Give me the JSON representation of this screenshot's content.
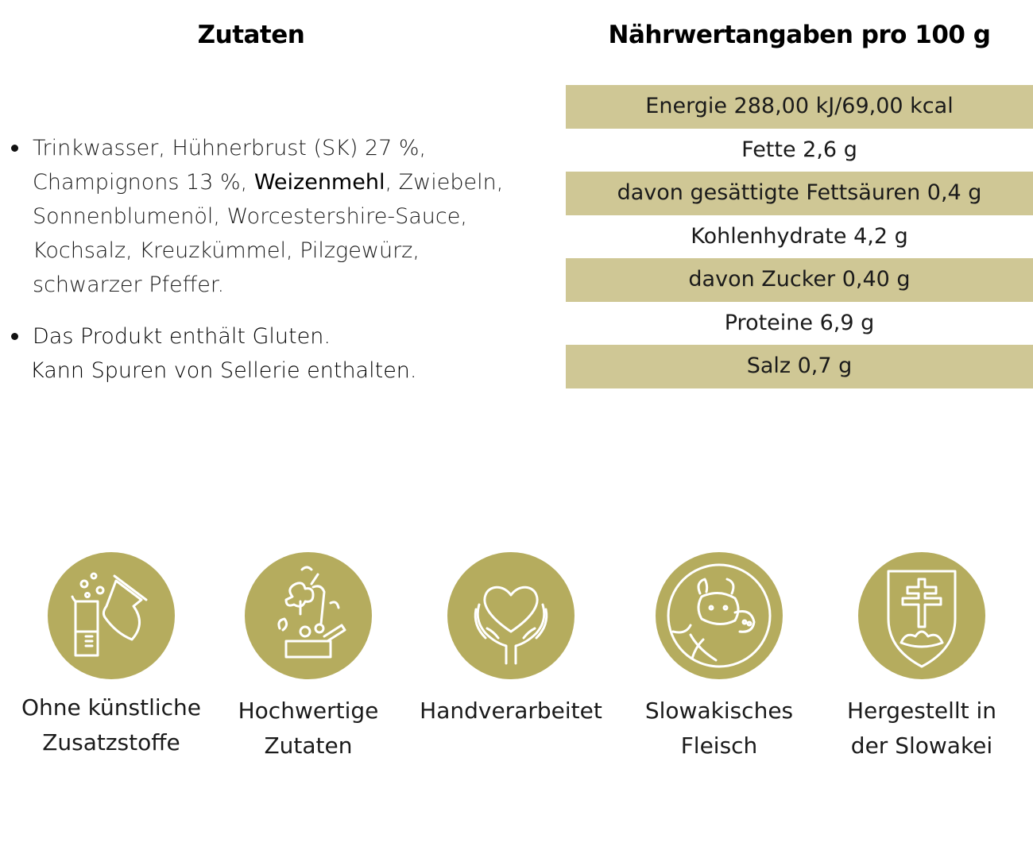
{
  "ingredients": {
    "heading": "Zutaten",
    "list_part1": "Trinkwasser, Hühnerbrust (SK) 27 %, Champignons 13 %, ",
    "list_allergen": "Weizenmehl",
    "list_part2": ", Zwiebeln, Sonnenblumenöl, Worcestershire-Sauce, Kochsalz, Kreuzkümmel, Pilzgewürz, schwarzer Pfeffer.",
    "allergen_line1": "Das Produkt enthält Gluten.",
    "allergen_line2": "Kann Spuren von Sellerie enthalten."
  },
  "nutrition": {
    "heading": "Nährwertangaben pro 100 g",
    "rows": [
      "Energie 288,00 kJ/69,00 kcal",
      "Fette 2,6 g",
      "davon gesättigte Fettsäuren 0,4 g",
      "Kohlenhydrate 4,2 g",
      "davon Zucker 0,40 g",
      "Proteine 6,9 g",
      "Salz 0,7 g"
    ]
  },
  "badges": [
    {
      "icon": "lab-flask-icon",
      "line1": "Ohne künstliche",
      "line2": "Zusatzstoffe"
    },
    {
      "icon": "vegetables-box-icon",
      "line1": "Hochwertige",
      "line2": "Zutaten"
    },
    {
      "icon": "hands-heart-icon",
      "line1": "Handverarbeitet",
      "line2": ""
    },
    {
      "icon": "animals-icon",
      "line1": "Slowakisches",
      "line2": "Fleisch"
    },
    {
      "icon": "slovak-coat-of-arms-icon",
      "line1": "Hergestellt in",
      "line2": "der Slowakei"
    }
  ],
  "colors": {
    "accent_gold": "#b5ac5e",
    "table_stripe": "#cfc795"
  }
}
